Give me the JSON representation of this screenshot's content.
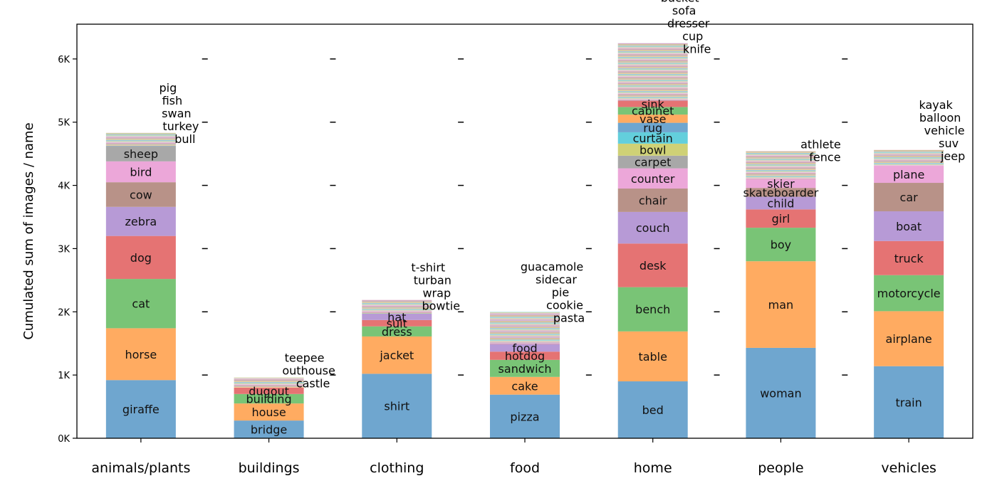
{
  "chart_data": {
    "type": "bar",
    "stacked": true,
    "title": "",
    "xlabel": "",
    "ylabel": "Cumulated sum of images / name",
    "ylim": [
      0,
      6550
    ],
    "yticks": [
      {
        "value": 0,
        "label": "0K"
      },
      {
        "value": 1000,
        "label": "1K"
      },
      {
        "value": 2000,
        "label": "2K"
      },
      {
        "value": 3000,
        "label": "3K"
      },
      {
        "value": 4000,
        "label": "4K"
      },
      {
        "value": 5000,
        "label": "5K"
      },
      {
        "value": 6000,
        "label": "6K"
      }
    ],
    "grid": false,
    "colors": [
      "#6fa6cf",
      "#ffab61",
      "#79c476",
      "#e57373",
      "#b79ad6",
      "#b89288",
      "#eca7d9",
      "#a8a8a8",
      "#cfd176",
      "#63cfdc"
    ],
    "categories": [
      {
        "name": "animals/plants",
        "total": 4830,
        "segments": [
          {
            "label": "giraffe",
            "value": 920
          },
          {
            "label": "horse",
            "value": 820
          },
          {
            "label": "cat",
            "value": 780
          },
          {
            "label": "dog",
            "value": 680
          },
          {
            "label": "zebra",
            "value": 460
          },
          {
            "label": "cow",
            "value": 390
          },
          {
            "label": "bird",
            "value": 330
          },
          {
            "label": "sheep",
            "value": 240
          }
        ],
        "top_labels": [
          "bull",
          "turkey",
          "swan",
          "fish",
          "pig"
        ]
      },
      {
        "name": "buildings",
        "total": 960,
        "segments": [
          {
            "label": "bridge",
            "value": 280
          },
          {
            "label": "house",
            "value": 270
          },
          {
            "label": "building",
            "value": 150
          },
          {
            "label": "dugout",
            "value": 100
          }
        ],
        "top_labels": [
          "castle",
          "outhouse",
          "teepee"
        ]
      },
      {
        "name": "clothing",
        "total": 2190,
        "segments": [
          {
            "label": "shirt",
            "value": 1020
          },
          {
            "label": "jacket",
            "value": 590
          },
          {
            "label": "dress",
            "value": 160
          },
          {
            "label": "suit",
            "value": 100
          },
          {
            "label": "hat",
            "value": 100
          }
        ],
        "top_labels": [
          "bowtie",
          "wrap",
          "turban",
          "t-shirt"
        ]
      },
      {
        "name": "food",
        "total": 2000,
        "segments": [
          {
            "label": "pizza",
            "value": 690
          },
          {
            "label": "cake",
            "value": 280
          },
          {
            "label": "sandwich",
            "value": 270
          },
          {
            "label": "hotdog",
            "value": 130
          },
          {
            "label": "food",
            "value": 120
          }
        ],
        "top_labels": [
          "pasta",
          "cookie",
          "pie",
          "sidecar",
          "guacamole"
        ]
      },
      {
        "name": "home",
        "total": 6250,
        "segments": [
          {
            "label": "bed",
            "value": 900
          },
          {
            "label": "table",
            "value": 790
          },
          {
            "label": "bench",
            "value": 700
          },
          {
            "label": "desk",
            "value": 690
          },
          {
            "label": "couch",
            "value": 500
          },
          {
            "label": "chair",
            "value": 370
          },
          {
            "label": "counter",
            "value": 320
          },
          {
            "label": "carpet",
            "value": 200
          },
          {
            "label": "bowl",
            "value": 190
          },
          {
            "label": "curtain",
            "value": 180
          },
          {
            "label": "rug",
            "value": 150
          },
          {
            "label": "vase",
            "value": 130
          },
          {
            "label": "cabinet",
            "value": 120
          },
          {
            "label": "sink",
            "value": 100
          }
        ],
        "top_labels": [
          "knife",
          "cup",
          "dresser",
          "sofa",
          "bucket"
        ]
      },
      {
        "name": "people",
        "total": 4540,
        "segments": [
          {
            "label": "woman",
            "value": 1430
          },
          {
            "label": "man",
            "value": 1370
          },
          {
            "label": "boy",
            "value": 530
          },
          {
            "label": "girl",
            "value": 290
          },
          {
            "label": "child",
            "value": 200
          },
          {
            "label": "skateboarder",
            "value": 140
          },
          {
            "label": "skier",
            "value": 140
          }
        ],
        "top_labels": [
          "fence",
          "athlete"
        ]
      },
      {
        "name": "vehicles",
        "total": 4560,
        "segments": [
          {
            "label": "train",
            "value": 1140
          },
          {
            "label": "airplane",
            "value": 870
          },
          {
            "label": "motorcycle",
            "value": 570
          },
          {
            "label": "truck",
            "value": 540
          },
          {
            "label": "boat",
            "value": 470
          },
          {
            "label": "car",
            "value": 450
          },
          {
            "label": "plane",
            "value": 270
          }
        ],
        "top_labels": [
          "jeep",
          "suv",
          "vehicle",
          "balloon",
          "kayak"
        ]
      }
    ]
  }
}
